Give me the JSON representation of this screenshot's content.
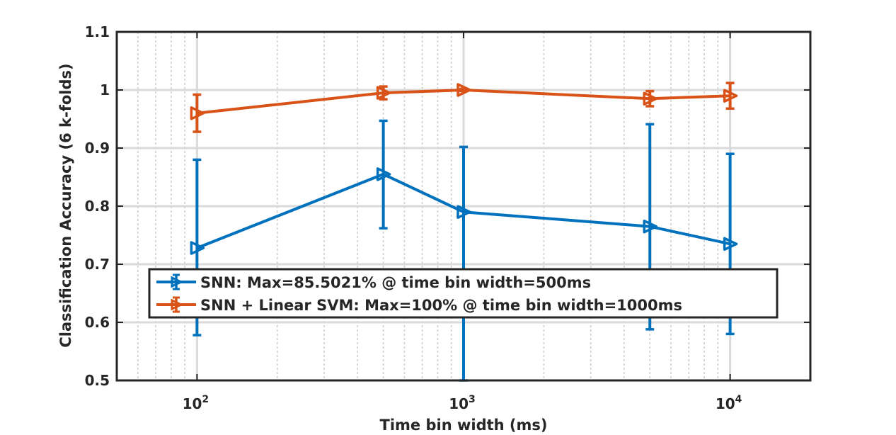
{
  "chart_data": {
    "type": "line",
    "title": "",
    "xlabel": "Time bin width (ms)",
    "ylabel": "Classification Accuracy (6 k-folds)",
    "xscale": "log",
    "xlim": [
      50,
      20000
    ],
    "ylim": [
      0.5,
      1.1
    ],
    "grid": true,
    "legend_position": "bottom-left",
    "x": [
      100,
      500,
      1000,
      5000,
      10000
    ],
    "xticks": [
      {
        "value": 100,
        "base": "10",
        "exp": "2"
      },
      {
        "value": 1000,
        "base": "10",
        "exp": "3"
      },
      {
        "value": 10000,
        "base": "10",
        "exp": "4"
      }
    ],
    "yticks": [
      {
        "value": 0.5,
        "label": "0.5"
      },
      {
        "value": 0.6,
        "label": "0.6"
      },
      {
        "value": 0.7,
        "label": "0.7"
      },
      {
        "value": 0.8,
        "label": "0.8"
      },
      {
        "value": 0.9,
        "label": "0.9"
      },
      {
        "value": 1.0,
        "label": "1"
      },
      {
        "value": 1.1,
        "label": "1.1"
      }
    ],
    "series": [
      {
        "name": "SNN: Max=85.5021% @ time bin width=500ms",
        "color": "#0072BD",
        "values": [
          0.728,
          0.855,
          0.79,
          0.765,
          0.735
        ],
        "err_low": [
          0.578,
          0.762,
          0.5,
          0.588,
          0.58
        ],
        "err_high": [
          0.88,
          0.947,
          0.902,
          0.941,
          0.89
        ]
      },
      {
        "name": "SNN + Linear SVM: Max=100% @ time bin width=1000ms",
        "color": "#D95319",
        "values": [
          0.96,
          0.995,
          1.0,
          0.985,
          0.99
        ],
        "err_low": [
          0.928,
          0.984,
          0.998,
          0.972,
          0.968
        ],
        "err_high": [
          0.992,
          1.006,
          1.002,
          0.998,
          1.012
        ]
      }
    ]
  }
}
